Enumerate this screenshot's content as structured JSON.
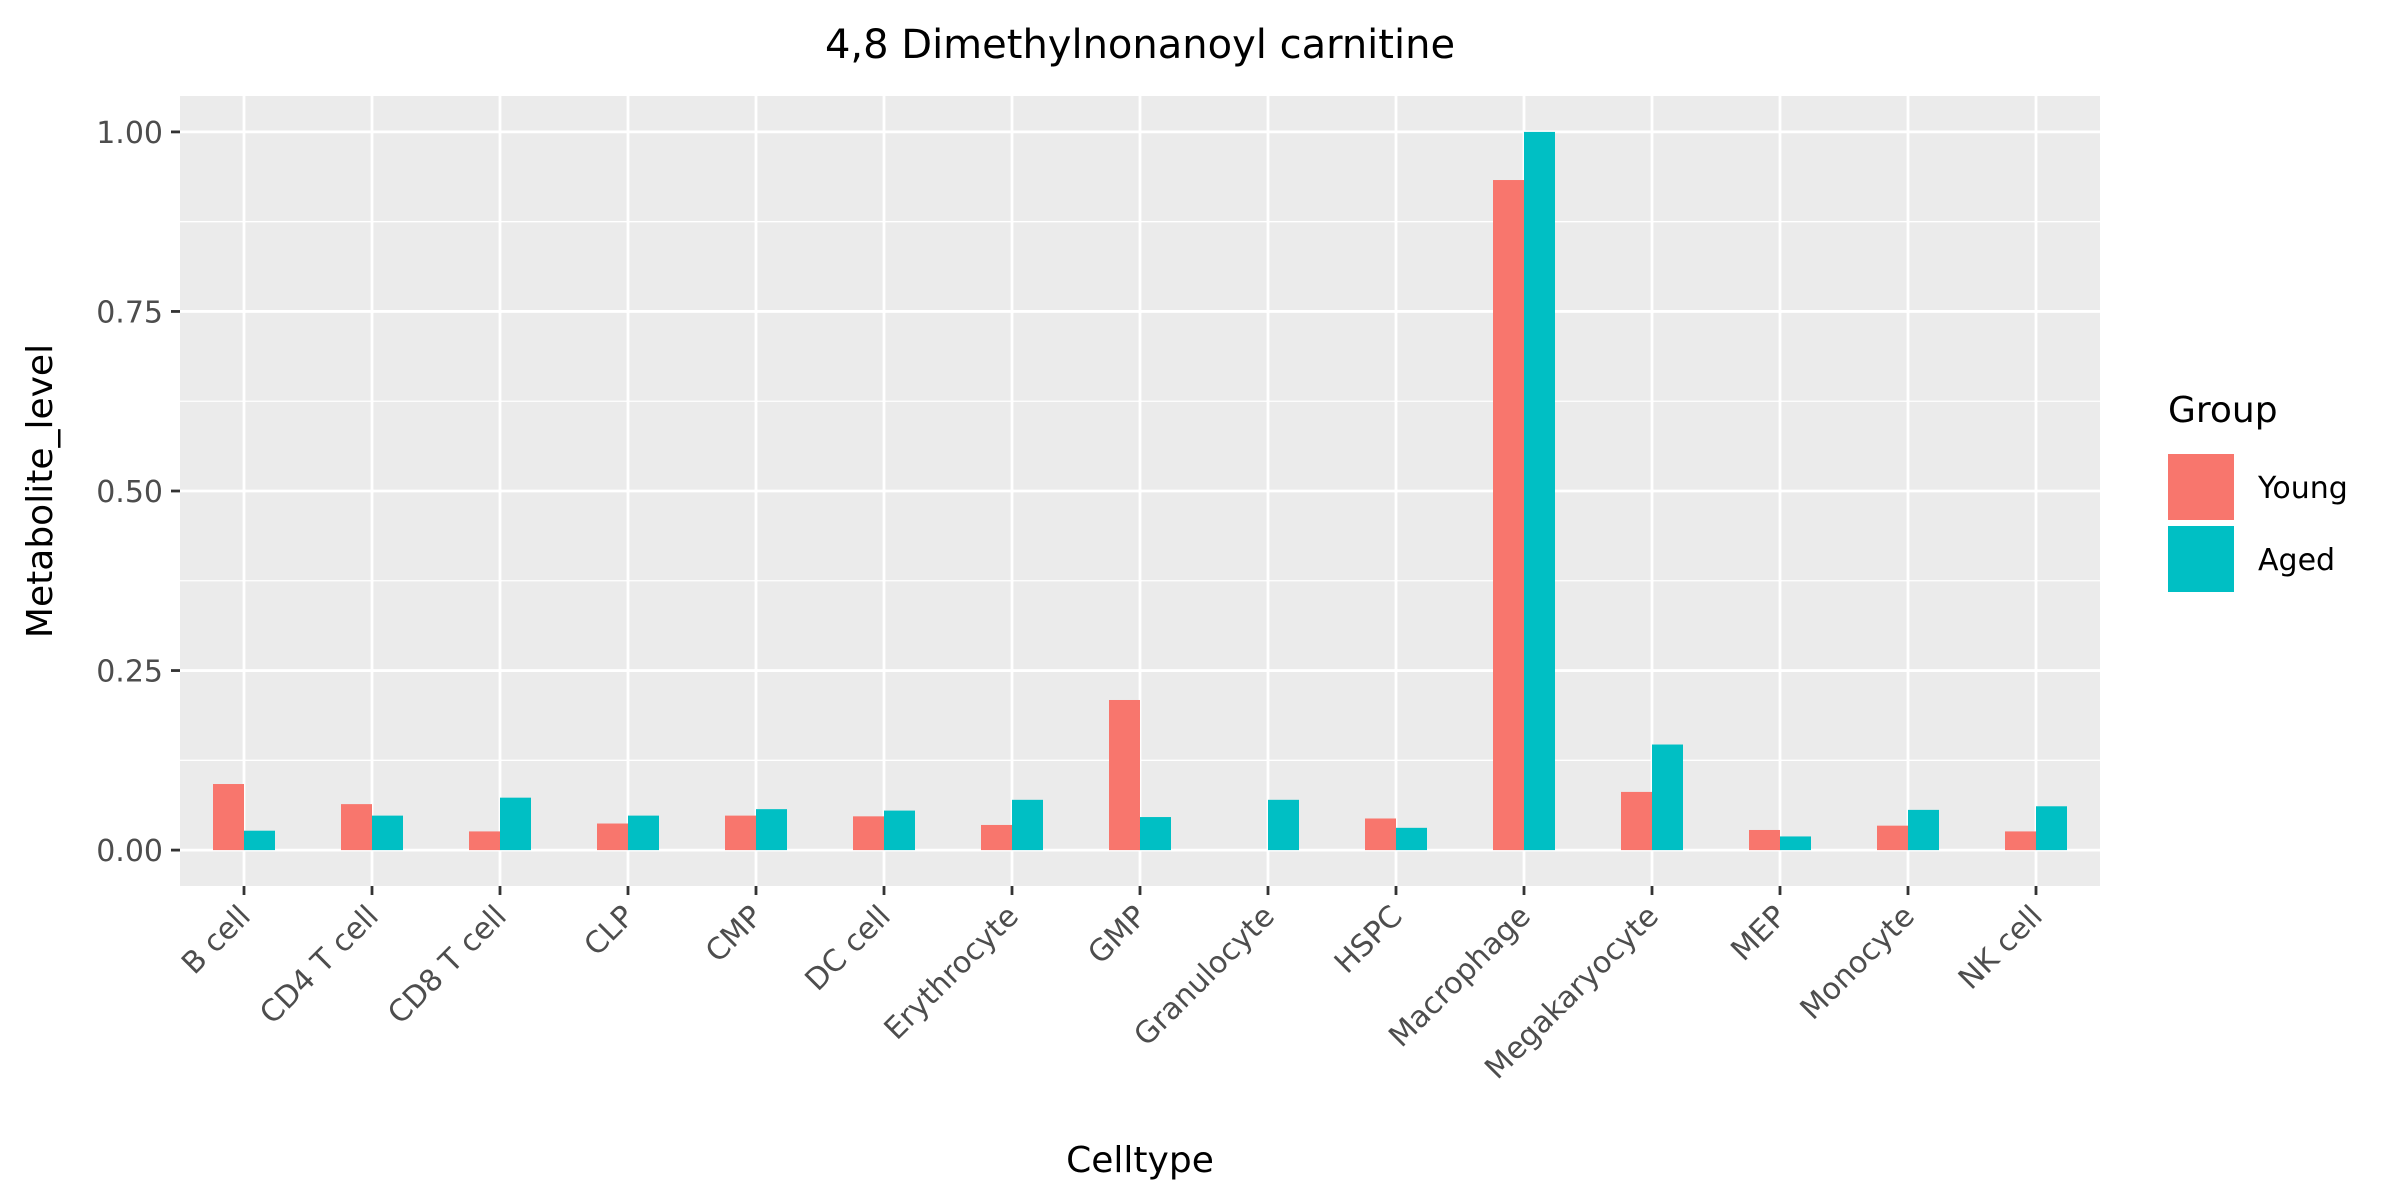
{
  "chart_data": {
    "type": "bar",
    "title": "4,8 Dimethylnonanoyl carnitine",
    "xlabel": "Celltype",
    "ylabel": "Metabolite_level",
    "categories": [
      "B cell",
      "CD4 T cell",
      "CD8 T cell",
      "CLP",
      "CMP",
      "DC cell",
      "Erythrocyte",
      "GMP",
      "Granulocyte",
      "HSPC",
      "Macrophage",
      "Megakaryocyte",
      "MEP",
      "Monocyte",
      "NK cell"
    ],
    "series": [
      {
        "name": "Young",
        "color": "#F8766D",
        "values": [
          0.092,
          0.064,
          0.026,
          0.037,
          0.048,
          0.047,
          0.035,
          0.209,
          null,
          0.044,
          0.933,
          0.081,
          0.028,
          0.034,
          0.026
        ]
      },
      {
        "name": "Aged",
        "color": "#00BFC4",
        "values": [
          0.027,
          0.048,
          0.073,
          0.048,
          0.057,
          0.055,
          0.07,
          0.046,
          0.07,
          0.031,
          1.0,
          0.147,
          0.019,
          0.056,
          0.061
        ]
      }
    ],
    "ylim": [
      -0.05,
      1.05
    ],
    "yticks": [
      0.0,
      0.25,
      0.5,
      0.75,
      1.0
    ],
    "ytick_labels": [
      "0.00",
      "0.25",
      "0.50",
      "0.75",
      "1.00"
    ],
    "grid": true,
    "legend": {
      "title": "Group",
      "position": "right"
    },
    "panel_background": "#EBEBEB"
  }
}
